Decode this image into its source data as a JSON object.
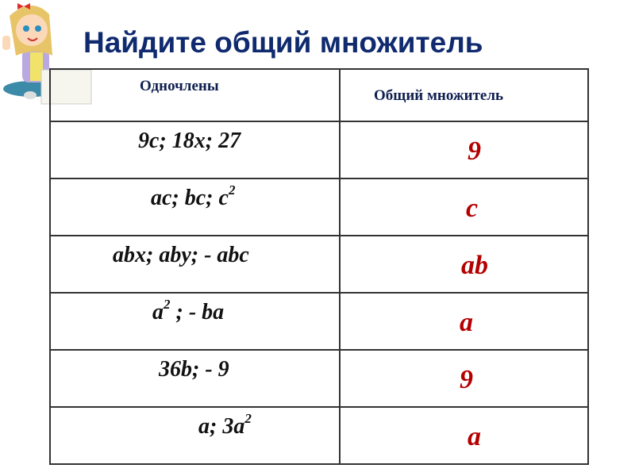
{
  "title": "Найдите общий множитель",
  "table": {
    "headers": [
      "Одночлены",
      "Общий множитель"
    ],
    "rows": [
      {
        "expr": [
          {
            "t": "9c; 18x; 27"
          }
        ],
        "answer": "9"
      },
      {
        "expr": [
          {
            "t": "ac; bc; c"
          },
          {
            "sup": "2"
          }
        ],
        "answer": "c"
      },
      {
        "expr": [
          {
            "t": "abx; aby; - abc"
          }
        ],
        "answer": "ab"
      },
      {
        "expr": [
          {
            "t": "a"
          },
          {
            "sup": "2"
          },
          {
            "t": " ; - ba"
          }
        ],
        "answer": "a"
      },
      {
        "expr": [
          {
            "t": "36b;  - 9"
          }
        ],
        "answer": "9"
      },
      {
        "expr": [
          {
            "t": "a; 3a"
          },
          {
            "sup": "2"
          }
        ],
        "answer": "a"
      }
    ]
  },
  "colors": {
    "title": "#0f2a6e",
    "answer": "#b40000",
    "border": "#333333"
  },
  "illustration": "girl-with-sign"
}
